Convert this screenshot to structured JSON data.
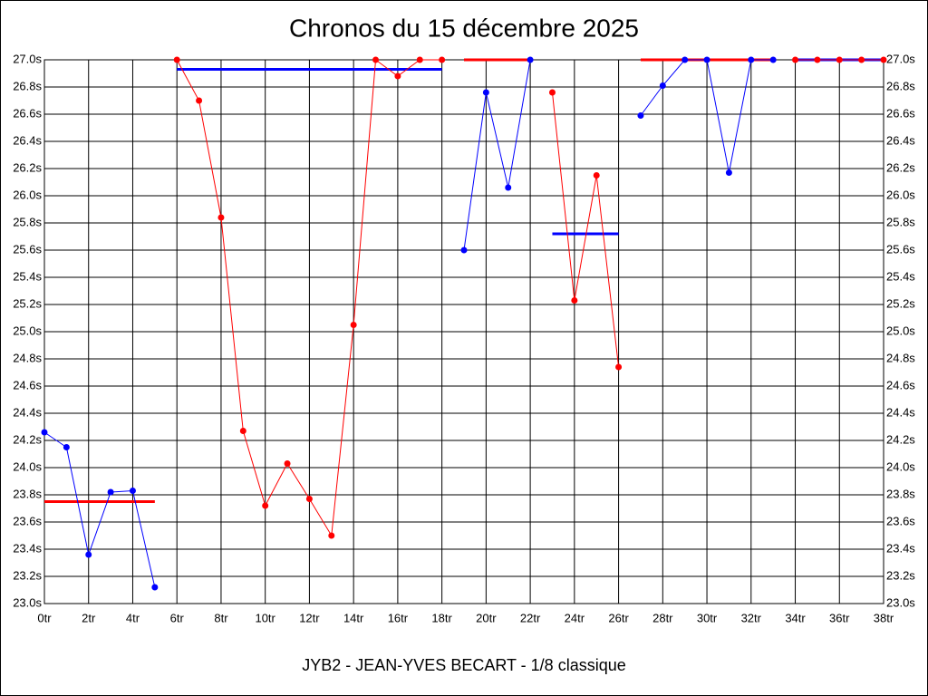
{
  "chart_data": {
    "type": "line",
    "title": "Chronos du 15 décembre 2025",
    "x_label": "JYB2 - JEAN-YVES BECART - 1/8 classique",
    "xlim": [
      0,
      38
    ],
    "ylim": [
      23.0,
      27.0
    ],
    "grid": true,
    "xticks": [
      {
        "value": 0,
        "label": "0tr"
      },
      {
        "value": 2,
        "label": "2tr"
      },
      {
        "value": 4,
        "label": "4tr"
      },
      {
        "value": 6,
        "label": "6tr"
      },
      {
        "value": 8,
        "label": "8tr"
      },
      {
        "value": 10,
        "label": "10tr"
      },
      {
        "value": 12,
        "label": "12tr"
      },
      {
        "value": 14,
        "label": "14tr"
      },
      {
        "value": 16,
        "label": "16tr"
      },
      {
        "value": 18,
        "label": "18tr"
      },
      {
        "value": 20,
        "label": "20tr"
      },
      {
        "value": 22,
        "label": "22tr"
      },
      {
        "value": 24,
        "label": "24tr"
      },
      {
        "value": 26,
        "label": "26tr"
      },
      {
        "value": 28,
        "label": "28tr"
      },
      {
        "value": 30,
        "label": "30tr"
      },
      {
        "value": 32,
        "label": "32tr"
      },
      {
        "value": 34,
        "label": "34tr"
      },
      {
        "value": 36,
        "label": "36tr"
      },
      {
        "value": 38,
        "label": "38tr"
      }
    ],
    "yticks": [
      {
        "value": 23.0,
        "label": "23.0s"
      },
      {
        "value": 23.2,
        "label": "23.2s"
      },
      {
        "value": 23.4,
        "label": "23.4s"
      },
      {
        "value": 23.6,
        "label": "23.6s"
      },
      {
        "value": 23.8,
        "label": "23.8s"
      },
      {
        "value": 24.0,
        "label": "24.0s"
      },
      {
        "value": 24.2,
        "label": "24.2s"
      },
      {
        "value": 24.4,
        "label": "24.4s"
      },
      {
        "value": 24.6,
        "label": "24.6s"
      },
      {
        "value": 24.8,
        "label": "24.8s"
      },
      {
        "value": 25.0,
        "label": "25.0s"
      },
      {
        "value": 25.2,
        "label": "25.2s"
      },
      {
        "value": 25.4,
        "label": "25.4s"
      },
      {
        "value": 25.6,
        "label": "25.6s"
      },
      {
        "value": 25.8,
        "label": "25.8s"
      },
      {
        "value": 26.0,
        "label": "26.0s"
      },
      {
        "value": 26.2,
        "label": "26.2s"
      },
      {
        "value": 26.4,
        "label": "26.4s"
      },
      {
        "value": 26.6,
        "label": "26.6s"
      },
      {
        "value": 26.8,
        "label": "26.8s"
      },
      {
        "value": 27.0,
        "label": "27.0s"
      }
    ],
    "series": [
      {
        "color": "#0000ff",
        "x": [
          0,
          1,
          2,
          3,
          4,
          5
        ],
        "values": [
          24.26,
          24.15,
          23.36,
          23.82,
          23.83,
          23.12
        ]
      },
      {
        "color": "#ff0000",
        "x": [
          6,
          7,
          8,
          9,
          10,
          11,
          12,
          13,
          14,
          15,
          16,
          17,
          18
        ],
        "values": [
          27.0,
          26.7,
          25.84,
          24.27,
          23.72,
          24.03,
          23.77,
          23.5,
          25.05,
          27.0,
          26.88,
          27.0,
          27.0
        ]
      },
      {
        "color": "#0000ff",
        "x": [
          19,
          20,
          21,
          22
        ],
        "values": [
          25.6,
          26.76,
          26.06,
          27.0
        ]
      },
      {
        "color": "#ff0000",
        "x": [
          23,
          24,
          25,
          26
        ],
        "values": [
          26.76,
          25.23,
          26.15,
          24.74
        ]
      },
      {
        "color": "#0000ff",
        "x": [
          27,
          28,
          29,
          30,
          31,
          32,
          33
        ],
        "values": [
          26.59,
          26.81,
          27.0,
          27.0,
          26.17,
          27.0,
          27.0
        ]
      },
      {
        "color": "#ff0000",
        "x": [
          34,
          35,
          36,
          37,
          38
        ],
        "values": [
          27.0,
          27.0,
          27.0,
          27.0,
          27.0
        ]
      }
    ],
    "averages": [
      {
        "color": "#ff0000",
        "x": [
          0,
          5
        ],
        "value": 23.75
      },
      {
        "color": "#0000ff",
        "x": [
          6,
          18
        ],
        "value": 26.93
      },
      {
        "color": "#ff0000",
        "x": [
          19,
          22
        ],
        "value": 27.0
      },
      {
        "color": "#0000ff",
        "x": [
          23,
          26
        ],
        "value": 25.72
      },
      {
        "color": "#ff0000",
        "x": [
          27,
          33
        ],
        "value": 27.0
      },
      {
        "color": "#0000ff",
        "x": [
          34,
          38
        ],
        "value": 27.0
      }
    ]
  }
}
